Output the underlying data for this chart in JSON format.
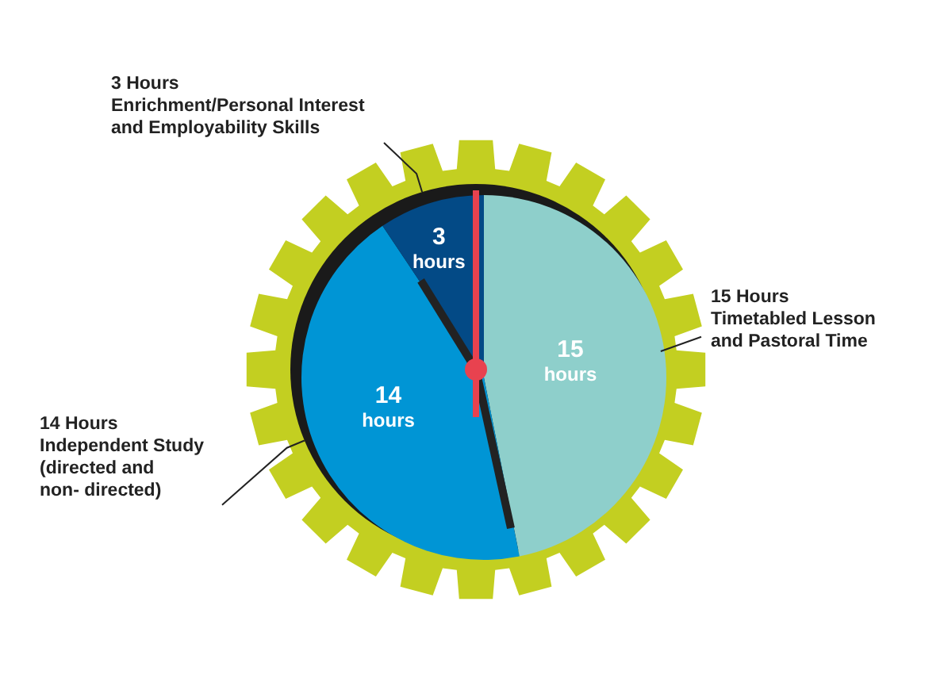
{
  "chart_data": {
    "type": "pie",
    "categories": [
      "15 Hours Timetabled Lesson and Pastoral Time",
      "14 Hours Independent Study (directed and non- directed)",
      "3 Hours Enrichment/Personal Interest and Employability Skills"
    ],
    "values": [
      15,
      14,
      3
    ],
    "colors": [
      "#8ecfcb",
      "#0095d5",
      "#034a86"
    ],
    "value_labels": [
      "15 hours",
      "14 hours",
      "3 hours"
    ],
    "needle": "3 Hours Enrichment/Personal Interest and Employability Skills"
  }
}
